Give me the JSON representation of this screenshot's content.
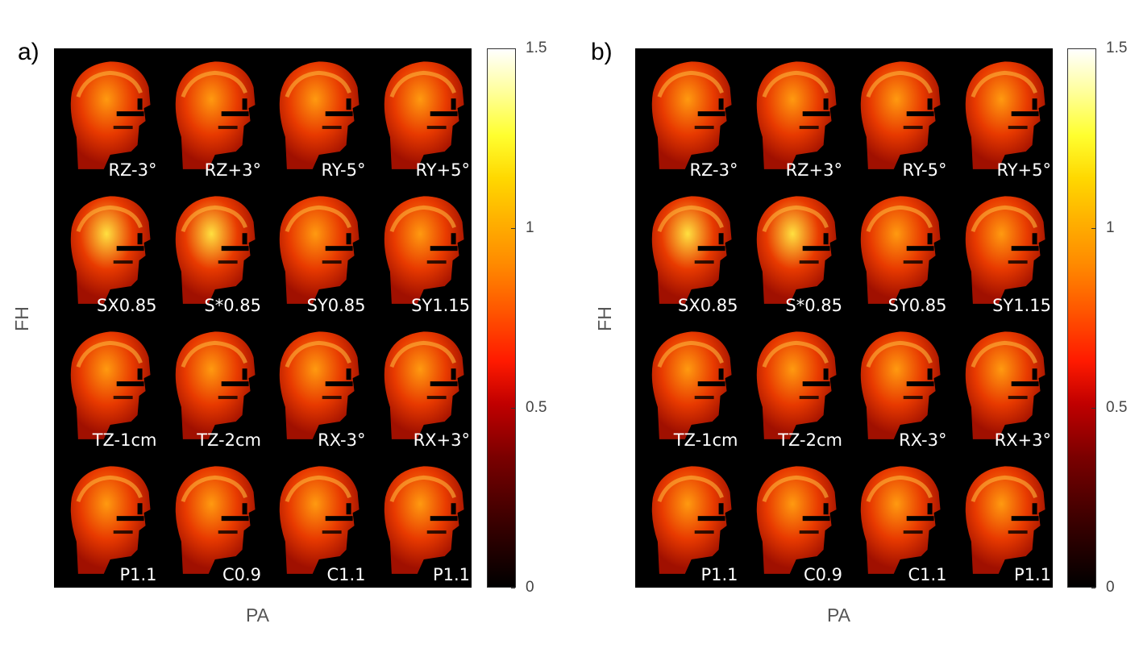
{
  "panels": [
    {
      "letter": "a)",
      "xlabel": "PA",
      "ylabel": "FH",
      "colorbar": {
        "ticks": [
          "1.5",
          "1",
          "0.5",
          "0"
        ],
        "range": [
          0,
          1.5
        ],
        "colormap": "hot"
      },
      "tiles": [
        [
          "RZ-3°",
          "RZ+3°",
          "RY-5°",
          "RY+5°"
        ],
        [
          "SX0.85",
          "S*0.85",
          "SY0.85",
          "SY1.15"
        ],
        [
          "TZ-1cm",
          "TZ-2cm",
          "RX-3°",
          "RX+3°"
        ],
        [
          "P1.1",
          "C0.9",
          "C1.1",
          "P1.1"
        ]
      ]
    },
    {
      "letter": "b)",
      "xlabel": "PA",
      "ylabel": "FH",
      "colorbar": {
        "ticks": [
          "1.5",
          "1",
          "0.5",
          "0"
        ],
        "range": [
          0,
          1.5
        ],
        "colormap": "hot"
      },
      "tiles": [
        [
          "RZ-3°",
          "RZ+3°",
          "RY-5°",
          "RY+5°"
        ],
        [
          "SX0.85",
          "S*0.85",
          "SY0.85",
          "SY1.15"
        ],
        [
          "TZ-1cm",
          "TZ-2cm",
          "RX-3°",
          "RX+3°"
        ],
        [
          "P1.1",
          "C0.9",
          "C1.1",
          "P1.1"
        ]
      ]
    }
  ],
  "colors": {
    "background": "#000000",
    "head_base": "#d42a00",
    "head_bright": "#ffb000",
    "label": "#ffffff"
  }
}
